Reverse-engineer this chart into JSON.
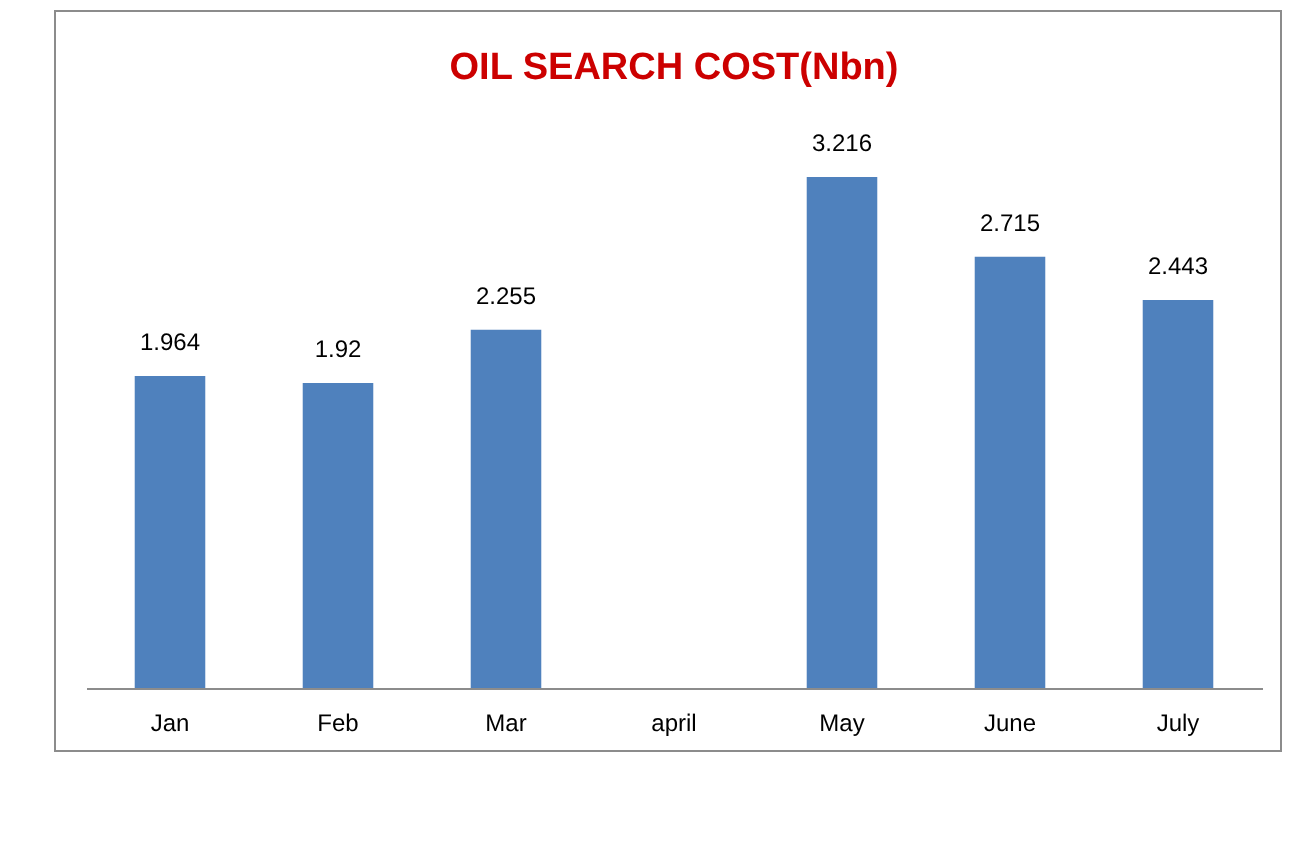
{
  "chart_data": {
    "type": "bar",
    "title": "OIL SEARCH COST(Nbn)",
    "categories": [
      "Jan",
      "Feb",
      "Mar",
      "april",
      "May",
      "June",
      "July"
    ],
    "values": [
      1.964,
      1.92,
      2.255,
      null,
      3.216,
      2.715,
      2.443
    ],
    "color": "#4f81bd",
    "data_labels": true,
    "grid": false
  }
}
